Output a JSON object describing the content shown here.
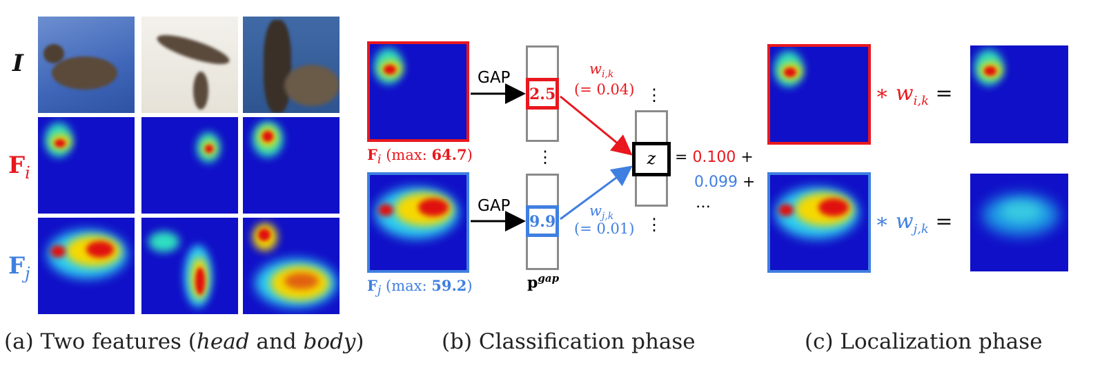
{
  "panel_a": {
    "row_labels": {
      "image": "I",
      "fi": "F",
      "fi_sub": "i",
      "fj": "F",
      "fj_sub": "j"
    },
    "caption_prefix": "(a) Two features (",
    "caption_em1": "head",
    "caption_mid": " and ",
    "caption_em2": "body",
    "caption_suffix": ")"
  },
  "panel_b": {
    "gap_top": "GAP",
    "gap_bottom": "GAP",
    "cell_top_value": "2.5",
    "cell_bottom_value": "9.9",
    "weight_top": "w",
    "weight_top_sub": "i,k",
    "weight_top_value": "(= 0.04)",
    "weight_bottom": "w",
    "weight_bottom_sub": "j,k",
    "weight_bottom_value": "(= 0.01)",
    "fi_label": "F",
    "fi_sub": "i",
    "fi_max_prefix": " (max: ",
    "fi_max_value": "64.7",
    "fi_max_suffix": ")",
    "fj_label": "F",
    "fj_sub": "j",
    "fj_max_prefix": " (max: ",
    "fj_max_value": "59.2",
    "fj_max_suffix": ")",
    "pgap": "p",
    "pgap_sup": "gap",
    "z_label": "z",
    "eq_line1": "= ",
    "eq_val1": "0.100",
    "eq_plus1": " +",
    "eq_val2": "0.099",
    "eq_plus2": " +",
    "eq_ellipsis": "…",
    "vdots": "⋮",
    "caption": "(b) Classification phase"
  },
  "panel_c": {
    "top_op": "∗ w",
    "top_sub": "i,k",
    "top_eq": " =",
    "bottom_op": "∗ w",
    "bottom_sub": "j,k",
    "bottom_eq": " =",
    "caption": "(c) Localization phase"
  },
  "colors": {
    "red": "#e8181e",
    "blue": "#3f7fe0",
    "heat_bg": "#1010c8"
  }
}
